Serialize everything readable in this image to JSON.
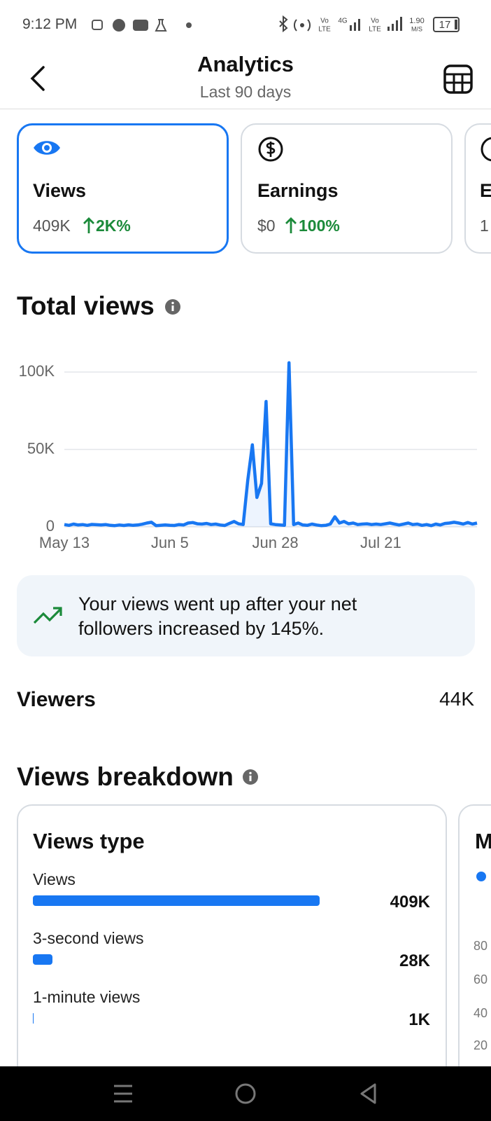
{
  "status_bar": {
    "time": "9:12 PM",
    "network": [
      "Vo",
      "LTE",
      "4G",
      "Vo",
      "LTE"
    ],
    "speed": "1.90",
    "speed_unit": "M/S",
    "battery": "17"
  },
  "header": {
    "title": "Analytics",
    "subtitle": "Last 90 days"
  },
  "metric_cards": [
    {
      "label": "Views",
      "value": "409K",
      "change": "2K%"
    },
    {
      "label": "Earnings",
      "value": "$0",
      "change": "100%"
    },
    {
      "label": "E",
      "value": "1"
    }
  ],
  "total_views": {
    "title": "Total views"
  },
  "chart": {
    "type": "line",
    "color": "#1877f2",
    "grid": true,
    "categories": [
      "May 13",
      null,
      null,
      null,
      null,
      null,
      null,
      null,
      null,
      null,
      null,
      null,
      null,
      null,
      null,
      null,
      null,
      null,
      null,
      null,
      null,
      null,
      null,
      "Jun 5",
      null,
      null,
      null,
      null,
      null,
      null,
      null,
      null,
      null,
      null,
      null,
      null,
      null,
      null,
      null,
      null,
      null,
      null,
      null,
      null,
      null,
      null,
      "Jun 28",
      null,
      null,
      null,
      null,
      null,
      null,
      null,
      null,
      null,
      null,
      null,
      null,
      null,
      null,
      null,
      null,
      null,
      null,
      null,
      null,
      null,
      null,
      "Jul 21",
      null,
      null,
      null,
      null,
      null,
      null,
      null,
      null,
      null,
      null,
      null,
      null,
      null,
      null,
      null,
      null,
      null,
      null,
      null,
      null,
      null
    ],
    "values": [
      1500,
      1000,
      1800,
      1200,
      1500,
      1000,
      1600,
      1400,
      1200,
      1500,
      1000,
      800,
      1200,
      900,
      1300,
      1000,
      1200,
      1700,
      2500,
      3000,
      800,
      1000,
      1200,
      1000,
      900,
      1500,
      1200,
      2500,
      2800,
      2000,
      1800,
      2200,
      1500,
      1800,
      1200,
      900,
      2200,
      3500,
      2000,
      1500,
      30000,
      53000,
      19000,
      28000,
      81000,
      2000,
      1500,
      1200,
      1000,
      106000,
      1500,
      2500,
      1200,
      1000,
      1800,
      1200,
      800,
      1000,
      1800,
      6500,
      2500,
      3500,
      2000,
      2500,
      1500,
      1800,
      2000,
      1500,
      1800,
      1500,
      2000,
      2500,
      1800,
      1200,
      1800,
      2500,
      1500,
      1800,
      1000,
      1500,
      800,
      1800,
      1200,
      2200,
      2500,
      3000,
      2500,
      1800,
      2800,
      1800,
      2500
    ],
    "ylim": [
      0,
      110000
    ],
    "yticks": [
      0,
      {
        "value": 50000,
        "label": "50K"
      },
      {
        "value": 100000,
        "label": "100K"
      }
    ]
  },
  "insight": {
    "text": "Your views went up after your net followers increased by 145%."
  },
  "viewers": {
    "label": "Viewers",
    "value": "44K"
  },
  "breakdown": {
    "title": "Views breakdown",
    "views_type": {
      "type": "bar",
      "title": "Views type",
      "color": "#1877f2",
      "categories": [
        "Views",
        "3-second views",
        "1-minute views"
      ],
      "values": [
        409000,
        28000,
        1000
      ],
      "value_labels": [
        "409K",
        "28K",
        "1K"
      ]
    },
    "next_card": {
      "title": "M",
      "yticks": [
        80,
        60,
        40,
        20
      ]
    }
  }
}
